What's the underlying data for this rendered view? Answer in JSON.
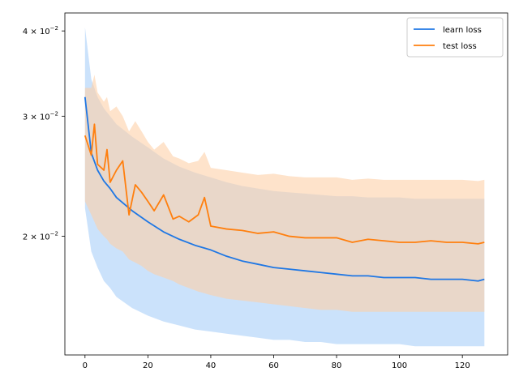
{
  "chart_data": {
    "type": "line",
    "title": "",
    "xlabel": "",
    "ylabel": "",
    "xlim": [
      -6.4,
      134.4
    ],
    "ylim": [
      0.0134,
      0.0425
    ],
    "yscale": "log",
    "grid": false,
    "legend_position": "top-right",
    "x_ticks": [
      0,
      20,
      40,
      60,
      80,
      100,
      120
    ],
    "x_tick_labels": [
      "0",
      "20",
      "40",
      "60",
      "80",
      "100",
      "120"
    ],
    "y_ticks": [
      0.02,
      0.03,
      0.04
    ],
    "y_tick_labels": [
      {
        "base": "2 × 10",
        "exp": "−2"
      },
      {
        "base": "3 × 10",
        "exp": "−2"
      },
      {
        "base": "4 × 10",
        "exp": "−2"
      }
    ],
    "series": [
      {
        "name": "learn loss",
        "color": "#1f77e4",
        "band_color": "#a8cff8",
        "x": [
          0,
          2,
          4,
          6,
          8,
          10,
          15,
          20,
          25,
          30,
          35,
          40,
          45,
          50,
          55,
          60,
          65,
          70,
          75,
          80,
          85,
          90,
          95,
          100,
          105,
          110,
          115,
          120,
          125,
          127
        ],
        "y": [
          0.032,
          0.0265,
          0.025,
          0.0241,
          0.0235,
          0.0228,
          0.0218,
          0.021,
          0.0203,
          0.0198,
          0.0194,
          0.0191,
          0.0187,
          0.0184,
          0.0182,
          0.018,
          0.0179,
          0.0178,
          0.0177,
          0.0176,
          0.0175,
          0.0175,
          0.0174,
          0.0174,
          0.0174,
          0.0173,
          0.0173,
          0.0173,
          0.0172,
          0.0173
        ],
        "lower": [
          0.022,
          0.019,
          0.018,
          0.0172,
          0.0168,
          0.0163,
          0.0157,
          0.0153,
          0.015,
          0.0148,
          0.0146,
          0.0145,
          0.0144,
          0.0143,
          0.0142,
          0.0141,
          0.0141,
          0.014,
          0.014,
          0.0139,
          0.0139,
          0.0139,
          0.0139,
          0.0139,
          0.0138,
          0.0138,
          0.0138,
          0.0138,
          0.0138,
          0.0138
        ],
        "upper": [
          0.0405,
          0.034,
          0.032,
          0.0308,
          0.03,
          0.0292,
          0.028,
          0.027,
          0.026,
          0.0253,
          0.0248,
          0.0244,
          0.024,
          0.0237,
          0.0235,
          0.0233,
          0.0232,
          0.0231,
          0.023,
          0.0229,
          0.0229,
          0.0228,
          0.0228,
          0.0228,
          0.0227,
          0.0227,
          0.0227,
          0.0227,
          0.0227,
          0.0227
        ]
      },
      {
        "name": "test loss",
        "color": "#ff7f0e",
        "band_color": "#fdd0a8",
        "x": [
          0,
          2,
          3,
          4,
          6,
          7,
          8,
          10,
          12,
          14,
          16,
          18,
          20,
          22,
          25,
          28,
          30,
          33,
          36,
          38,
          40,
          45,
          50,
          55,
          60,
          65,
          70,
          75,
          80,
          85,
          90,
          95,
          100,
          105,
          110,
          115,
          120,
          125,
          127
        ],
        "y": [
          0.0281,
          0.0263,
          0.0292,
          0.0255,
          0.025,
          0.0268,
          0.024,
          0.025,
          0.0258,
          0.0215,
          0.0238,
          0.0232,
          0.0225,
          0.0218,
          0.023,
          0.0212,
          0.0214,
          0.021,
          0.0215,
          0.0228,
          0.0207,
          0.0205,
          0.0204,
          0.0202,
          0.0203,
          0.02,
          0.0199,
          0.0199,
          0.0199,
          0.0196,
          0.0198,
          0.0197,
          0.0196,
          0.0196,
          0.0197,
          0.0196,
          0.0196,
          0.0195,
          0.0196
        ],
        "lower": [
          0.0225,
          0.0215,
          0.021,
          0.0205,
          0.02,
          0.0198,
          0.0195,
          0.0192,
          0.019,
          0.0185,
          0.0183,
          0.0181,
          0.0178,
          0.0176,
          0.0174,
          0.0172,
          0.017,
          0.0168,
          0.0166,
          0.0165,
          0.0164,
          0.0162,
          0.0161,
          0.016,
          0.0159,
          0.0158,
          0.0157,
          0.0156,
          0.0156,
          0.0155,
          0.0155,
          0.0155,
          0.0155,
          0.0155,
          0.0155,
          0.0155,
          0.0155,
          0.0155,
          0.0155
        ],
        "upper": [
          0.033,
          0.033,
          0.0345,
          0.0325,
          0.0315,
          0.032,
          0.0305,
          0.031,
          0.03,
          0.0285,
          0.0295,
          0.0285,
          0.0275,
          0.0268,
          0.0275,
          0.0262,
          0.026,
          0.0256,
          0.0258,
          0.0266,
          0.0252,
          0.025,
          0.0248,
          0.0246,
          0.0247,
          0.0245,
          0.0244,
          0.0244,
          0.0244,
          0.0242,
          0.0243,
          0.0242,
          0.0242,
          0.0242,
          0.0242,
          0.0242,
          0.0242,
          0.0241,
          0.0242
        ]
      }
    ]
  }
}
